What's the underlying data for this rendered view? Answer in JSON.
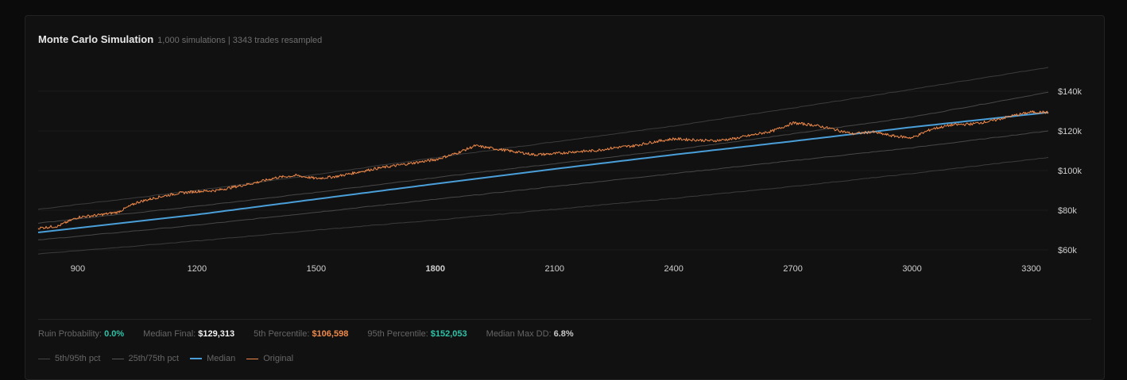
{
  "header": {
    "title": "Monte Carlo Simulation",
    "subtitle": "1,000 simulations | 3343 trades resampled"
  },
  "stats": [
    {
      "label": "Ruin Probability:",
      "value": "0.0%",
      "color": "#2dc2a8"
    },
    {
      "label": "Median Final:",
      "value": "$129,313",
      "color": "#f2f2f2"
    },
    {
      "label": "5th Percentile:",
      "value": "$106,598",
      "color": "#f08a4b"
    },
    {
      "label": "95th Percentile:",
      "value": "$152,053",
      "color": "#2dc2a8"
    },
    {
      "label": "Median Max DD:",
      "value": "6.8%",
      "color": "#c8c8c8"
    }
  ],
  "legend": [
    {
      "label": "5th/95th pct"
    },
    {
      "label": "25th/75th pct"
    },
    {
      "label": "Median"
    },
    {
      "label": "Original"
    }
  ],
  "chart_data": {
    "type": "line",
    "x_ticks": [
      900,
      1200,
      1500,
      1800,
      2100,
      2400,
      2700,
      3000,
      3300
    ],
    "x_tick_labels": [
      "900",
      "1200",
      "1500",
      "1800",
      "2100",
      "2400",
      "2700",
      "3000",
      "3300"
    ],
    "highlight_tick": 1800,
    "y_ticks": [
      60000,
      80000,
      100000,
      120000,
      140000
    ],
    "y_tick_labels": [
      "$60k",
      "$80k",
      "$100k",
      "$120k",
      "$140k"
    ],
    "xlim": [
      800,
      3343
    ],
    "ylim": [
      56000,
      156000
    ],
    "grid": true,
    "series": [
      {
        "name": "5th/95th pct",
        "kind": "p95",
        "color": "#3c3c3c",
        "x": [
          800,
          1200,
          1500,
          1800,
          2100,
          2400,
          2700,
          3000,
          3343
        ],
        "y": [
          80500,
          90000,
          98000,
          106500,
          114500,
          122500,
          131500,
          141000,
          152053
        ]
      },
      {
        "name": "25th/75th pct",
        "kind": "p75",
        "color": "#484848",
        "x": [
          800,
          1200,
          1500,
          1800,
          2100,
          2400,
          2700,
          3000,
          3343
        ],
        "y": [
          73500,
          82000,
          89000,
          96500,
          103500,
          110500,
          118500,
          127000,
          139500
        ]
      },
      {
        "name": "Median",
        "kind": "median",
        "color": "#4a9fd8",
        "x": [
          800,
          1200,
          1500,
          1800,
          2100,
          2400,
          2700,
          3000,
          3343
        ],
        "y": [
          68800,
          77800,
          85600,
          93300,
          100800,
          108000,
          114800,
          121900,
          129313
        ]
      },
      {
        "name": "25th/75th pct",
        "kind": "p25",
        "color": "#484848",
        "x": [
          800,
          1200,
          1500,
          1800,
          2100,
          2400,
          2700,
          3000,
          3343
        ],
        "y": [
          65000,
          72500,
          79000,
          85500,
          92000,
          98500,
          105000,
          111500,
          120000
        ]
      },
      {
        "name": "5th/95th pct",
        "kind": "p5",
        "color": "#3c3c3c",
        "x": [
          800,
          1200,
          1500,
          1800,
          2100,
          2400,
          2700,
          3000,
          3343
        ],
        "y": [
          58000,
          64500,
          70000,
          75000,
          80500,
          86000,
          92000,
          98500,
          106598
        ]
      },
      {
        "name": "Original",
        "kind": "original",
        "color": "#f08a4b",
        "x": [
          800,
          850,
          900,
          950,
          1000,
          1050,
          1100,
          1150,
          1200,
          1250,
          1300,
          1350,
          1400,
          1450,
          1500,
          1550,
          1600,
          1650,
          1700,
          1750,
          1800,
          1850,
          1900,
          1950,
          2000,
          2050,
          2100,
          2150,
          2200,
          2250,
          2300,
          2350,
          2400,
          2450,
          2500,
          2550,
          2600,
          2650,
          2700,
          2750,
          2800,
          2850,
          2900,
          2950,
          3000,
          3050,
          3100,
          3150,
          3200,
          3250,
          3300,
          3343
        ],
        "y": [
          71000,
          72000,
          76500,
          77500,
          79000,
          84000,
          86500,
          88500,
          89500,
          90000,
          92000,
          94000,
          96500,
          97500,
          96000,
          97000,
          99000,
          101000,
          102500,
          104000,
          105500,
          108500,
          112500,
          111000,
          109500,
          108000,
          108500,
          109500,
          110000,
          111500,
          112500,
          114500,
          116000,
          115500,
          115000,
          116000,
          118000,
          120000,
          124000,
          123000,
          121000,
          118500,
          119500,
          117500,
          116500,
          121000,
          123000,
          123500,
          125000,
          127500,
          129500,
          129313
        ]
      }
    ]
  }
}
